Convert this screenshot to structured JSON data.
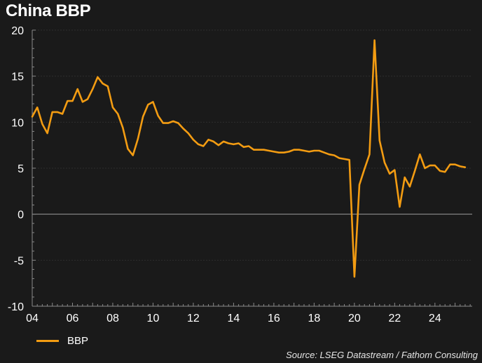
{
  "chart_data": {
    "type": "line",
    "title": "China BBP",
    "xlabel": "",
    "ylabel": "",
    "xlim": [
      2004.0,
      2025.85
    ],
    "ylim": [
      -10,
      20
    ],
    "x_ticks": [
      2004,
      2006,
      2008,
      2010,
      2012,
      2014,
      2016,
      2018,
      2020,
      2022,
      2024
    ],
    "x_tick_labels": [
      "04",
      "06",
      "08",
      "10",
      "12",
      "14",
      "16",
      "18",
      "20",
      "22",
      "24"
    ],
    "y_ticks": [
      -10,
      -5,
      0,
      5,
      10,
      15,
      20
    ],
    "y_tick_labels": [
      "-10",
      "-5",
      "0",
      "5",
      "10",
      "15",
      "20"
    ],
    "grid": true,
    "zero_line": true,
    "legend_position": "bottom-left",
    "series": [
      {
        "name": "BBP",
        "color": "#f39c12",
        "x": [
          2004.0,
          2004.25,
          2004.5,
          2004.75,
          2005.0,
          2005.25,
          2005.5,
          2005.75,
          2006.0,
          2006.25,
          2006.5,
          2006.75,
          2007.0,
          2007.25,
          2007.5,
          2007.75,
          2008.0,
          2008.25,
          2008.5,
          2008.75,
          2009.0,
          2009.25,
          2009.5,
          2009.75,
          2010.0,
          2010.25,
          2010.5,
          2010.75,
          2011.0,
          2011.25,
          2011.5,
          2011.75,
          2012.0,
          2012.25,
          2012.5,
          2012.75,
          2013.0,
          2013.25,
          2013.5,
          2013.75,
          2014.0,
          2014.25,
          2014.5,
          2014.75,
          2015.0,
          2015.25,
          2015.5,
          2015.75,
          2016.0,
          2016.25,
          2016.5,
          2016.75,
          2017.0,
          2017.25,
          2017.5,
          2017.75,
          2018.0,
          2018.25,
          2018.5,
          2018.75,
          2019.0,
          2019.25,
          2019.5,
          2019.75,
          2020.0,
          2020.25,
          2020.5,
          2020.75,
          2021.0,
          2021.25,
          2021.5,
          2021.75,
          2022.0,
          2022.25,
          2022.5,
          2022.75,
          2023.0,
          2023.25,
          2023.5,
          2023.75,
          2024.0,
          2024.25,
          2024.5,
          2024.75,
          2025.0,
          2025.25,
          2025.5
        ],
        "values": [
          10.6,
          11.6,
          9.8,
          8.8,
          11.1,
          11.1,
          10.9,
          12.3,
          12.3,
          13.6,
          12.2,
          12.5,
          13.6,
          14.9,
          14.2,
          13.9,
          11.6,
          10.9,
          9.4,
          7.1,
          6.4,
          8.2,
          10.6,
          11.9,
          12.2,
          10.7,
          9.9,
          9.9,
          10.1,
          9.9,
          9.3,
          8.8,
          8.1,
          7.6,
          7.4,
          8.1,
          7.9,
          7.5,
          7.9,
          7.7,
          7.6,
          7.7,
          7.3,
          7.4,
          7.0,
          7.0,
          7.0,
          6.9,
          6.8,
          6.7,
          6.7,
          6.8,
          7.0,
          7.0,
          6.9,
          6.8,
          6.9,
          6.9,
          6.7,
          6.5,
          6.4,
          6.1,
          6.0,
          5.9,
          -6.8,
          3.2,
          4.9,
          6.5,
          18.9,
          8.0,
          5.6,
          4.4,
          4.8,
          0.8,
          4.0,
          3.0,
          4.7,
          6.5,
          5.0,
          5.3,
          5.3,
          4.7,
          4.6,
          5.4,
          5.4,
          5.2,
          5.1
        ]
      }
    ]
  },
  "legend": {
    "items": [
      {
        "label": "BBP",
        "color": "#f39c12"
      }
    ]
  },
  "source": "Source: LSEG Datastream / Fathom Consulting"
}
